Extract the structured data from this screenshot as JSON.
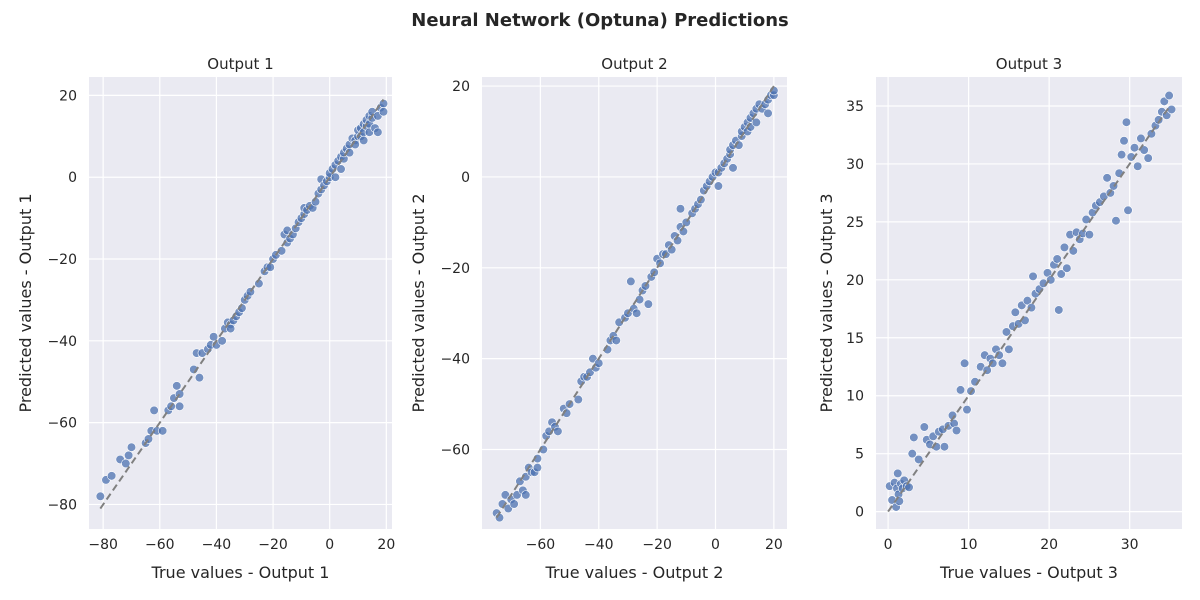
{
  "figure_title": "Neural Network (Optuna) Predictions",
  "colors": {
    "background": "#eaeaf2",
    "grid": "#ffffff",
    "point": "#4c72b0",
    "diagonal": "#808080"
  },
  "chart_data": [
    {
      "type": "scatter",
      "title": "Output 1",
      "xlabel": "True values - Output 1",
      "ylabel": "Predicted values - Output 1",
      "xlim": [
        -85,
        22
      ],
      "ylim": [
        -86,
        24.5
      ],
      "xticks": [
        -80,
        -60,
        -40,
        -20,
        0,
        20
      ],
      "yticks": [
        -80,
        -60,
        -40,
        -20,
        0,
        20
      ],
      "tick_labels_x": [
        "−80",
        "−60",
        "−40",
        "−20",
        "0",
        "20"
      ],
      "tick_labels_y": [
        "−80",
        "−60",
        "−40",
        "−20",
        "0",
        "20"
      ],
      "diagonal": [
        -81,
        19
      ],
      "grid": true,
      "points": [
        [
          -81,
          -78
        ],
        [
          -79,
          -74
        ],
        [
          -77,
          -73
        ],
        [
          -74,
          -69
        ],
        [
          -72,
          -70
        ],
        [
          -71,
          -68
        ],
        [
          -70,
          -66
        ],
        [
          -65,
          -65
        ],
        [
          -64,
          -64
        ],
        [
          -63,
          -62
        ],
        [
          -62,
          -57
        ],
        [
          -61,
          -62
        ],
        [
          -59,
          -62
        ],
        [
          -57,
          -57
        ],
        [
          -56,
          -56
        ],
        [
          -55,
          -54
        ],
        [
          -54,
          -51
        ],
        [
          -53,
          -53
        ],
        [
          -53,
          -56
        ],
        [
          -48,
          -47
        ],
        [
          -47,
          -43
        ],
        [
          -46,
          -49
        ],
        [
          -45,
          -43
        ],
        [
          -43,
          -42
        ],
        [
          -42,
          -41
        ],
        [
          -41,
          -39
        ],
        [
          -40,
          -41
        ],
        [
          -38,
          -40
        ],
        [
          -37,
          -37
        ],
        [
          -36,
          -35.5
        ],
        [
          -35,
          -36
        ],
        [
          -35,
          -37
        ],
        [
          -34,
          -35
        ],
        [
          -33,
          -34
        ],
        [
          -32,
          -33
        ],
        [
          -31,
          -32
        ],
        [
          -30,
          -30
        ],
        [
          -29,
          -29
        ],
        [
          -28,
          -28
        ],
        [
          -25,
          -26
        ],
        [
          -23,
          -23
        ],
        [
          -22,
          -22
        ],
        [
          -21,
          -22
        ],
        [
          -20,
          -20
        ],
        [
          -19,
          -19
        ],
        [
          -17,
          -18
        ],
        [
          -16,
          -14
        ],
        [
          -15,
          -13
        ],
        [
          -15,
          -16
        ],
        [
          -14,
          -15
        ],
        [
          -13,
          -14
        ],
        [
          -12,
          -12.5
        ],
        [
          -11,
          -11
        ],
        [
          -10,
          -10
        ],
        [
          -9,
          -9
        ],
        [
          -9,
          -7.5
        ],
        [
          -8,
          -8
        ],
        [
          -7,
          -7
        ],
        [
          -6,
          -7.5
        ],
        [
          -5,
          -6
        ],
        [
          -4,
          -4
        ],
        [
          -3,
          -3
        ],
        [
          -3,
          -0.5
        ],
        [
          -2,
          -2
        ],
        [
          -1,
          -1
        ],
        [
          0,
          0
        ],
        [
          0,
          1
        ],
        [
          1,
          2
        ],
        [
          2,
          3
        ],
        [
          2,
          0
        ],
        [
          3,
          4
        ],
        [
          4,
          2
        ],
        [
          4,
          5
        ],
        [
          5,
          4.5
        ],
        [
          5,
          6
        ],
        [
          6,
          7
        ],
        [
          7,
          8
        ],
        [
          7,
          6
        ],
        [
          8,
          9.5
        ],
        [
          9,
          9
        ],
        [
          9,
          8
        ],
        [
          10,
          10
        ],
        [
          10,
          11.5
        ],
        [
          11,
          10
        ],
        [
          11,
          12
        ],
        [
          12,
          11
        ],
        [
          12,
          13
        ],
        [
          12,
          9
        ],
        [
          13,
          12.5
        ],
        [
          13,
          14
        ],
        [
          14,
          13
        ],
        [
          14,
          15
        ],
        [
          14,
          11
        ],
        [
          15,
          14.5
        ],
        [
          15,
          16
        ],
        [
          16,
          12
        ],
        [
          17,
          15
        ],
        [
          17,
          11
        ],
        [
          18,
          17
        ],
        [
          19,
          18
        ],
        [
          19,
          16
        ]
      ]
    },
    {
      "type": "scatter",
      "title": "Output 2",
      "xlabel": "True values - Output 2",
      "ylabel": "Predicted values - Output 2",
      "xlim": [
        -80,
        24.5
      ],
      "ylim": [
        -77.5,
        22
      ],
      "xticks": [
        -60,
        -40,
        -20,
        0,
        20
      ],
      "yticks": [
        -60,
        -40,
        -20,
        0,
        20
      ],
      "tick_labels_x": [
        "−60",
        "−40",
        "−20",
        "0",
        "20"
      ],
      "tick_labels_y": [
        "−60",
        "−40",
        "−20",
        "0",
        "20"
      ],
      "diagonal": [
        -75,
        20
      ],
      "grid": true,
      "points": [
        [
          -75,
          -74
        ],
        [
          -74,
          -75
        ],
        [
          -73,
          -72
        ],
        [
          -72,
          -70
        ],
        [
          -71,
          -73
        ],
        [
          -70,
          -71
        ],
        [
          -69,
          -72
        ],
        [
          -68,
          -70
        ],
        [
          -67,
          -67
        ],
        [
          -66,
          -69
        ],
        [
          -65,
          -70
        ],
        [
          -65,
          -66
        ],
        [
          -64,
          -64
        ],
        [
          -63,
          -65
        ],
        [
          -62,
          -65
        ],
        [
          -61,
          -64
        ],
        [
          -61,
          -62
        ],
        [
          -59,
          -60
        ],
        [
          -58,
          -57
        ],
        [
          -57,
          -56
        ],
        [
          -56,
          -54
        ],
        [
          -55,
          -55
        ],
        [
          -54,
          -56
        ],
        [
          -52,
          -51
        ],
        [
          -51,
          -52
        ],
        [
          -50,
          -50
        ],
        [
          -47,
          -49
        ],
        [
          -46,
          -45
        ],
        [
          -45,
          -44
        ],
        [
          -44,
          -44
        ],
        [
          -43,
          -43
        ],
        [
          -42,
          -40
        ],
        [
          -41,
          -42
        ],
        [
          -40,
          -41
        ],
        [
          -37,
          -38
        ],
        [
          -36,
          -36
        ],
        [
          -35,
          -35
        ],
        [
          -34,
          -36
        ],
        [
          -33,
          -32
        ],
        [
          -31,
          -31
        ],
        [
          -30,
          -30
        ],
        [
          -29,
          -23
        ],
        [
          -28,
          -29
        ],
        [
          -27,
          -30
        ],
        [
          -26,
          -27
        ],
        [
          -25,
          -25
        ],
        [
          -24,
          -24
        ],
        [
          -23,
          -28
        ],
        [
          -22,
          -22
        ],
        [
          -21,
          -21
        ],
        [
          -20,
          -18
        ],
        [
          -19,
          -19
        ],
        [
          -18,
          -17
        ],
        [
          -17,
          -17
        ],
        [
          -16,
          -15
        ],
        [
          -15,
          -16
        ],
        [
          -14,
          -13
        ],
        [
          -13,
          -14
        ],
        [
          -12,
          -7
        ],
        [
          -12,
          -11
        ],
        [
          -11,
          -12
        ],
        [
          -10,
          -10
        ],
        [
          -8,
          -8
        ],
        [
          -7,
          -7
        ],
        [
          -6,
          -6
        ],
        [
          -5,
          -5
        ],
        [
          -4,
          -3
        ],
        [
          -3,
          -2
        ],
        [
          -2,
          -1
        ],
        [
          -1,
          0
        ],
        [
          0,
          1
        ],
        [
          1,
          -2
        ],
        [
          1,
          1
        ],
        [
          2,
          2
        ],
        [
          3,
          3
        ],
        [
          4,
          4
        ],
        [
          5,
          5
        ],
        [
          5,
          6
        ],
        [
          6,
          2
        ],
        [
          6,
          7
        ],
        [
          7,
          8
        ],
        [
          8,
          7
        ],
        [
          9,
          9
        ],
        [
          9,
          10
        ],
        [
          10,
          11
        ],
        [
          11,
          10
        ],
        [
          11,
          12
        ],
        [
          12,
          13
        ],
        [
          12,
          11
        ],
        [
          13,
          14
        ],
        [
          14,
          15
        ],
        [
          14,
          12
        ],
        [
          15,
          16
        ],
        [
          16,
          15
        ],
        [
          17,
          16
        ],
        [
          18,
          17
        ],
        [
          18,
          14
        ],
        [
          19,
          18
        ],
        [
          20,
          18
        ],
        [
          20,
          19
        ]
      ]
    },
    {
      "type": "scatter",
      "title": "Output 3",
      "xlabel": "True values - Output 3",
      "ylabel": "Predicted values - Output 3",
      "xlim": [
        -1.5,
        36.5
      ],
      "ylim": [
        -1.5,
        37.5
      ],
      "xticks": [
        0,
        10,
        20,
        30
      ],
      "yticks": [
        0,
        5,
        10,
        15,
        20,
        25,
        30,
        35
      ],
      "tick_labels_x": [
        "0",
        "10",
        "20",
        "30"
      ],
      "tick_labels_y": [
        "0",
        "5",
        "10",
        "15",
        "20",
        "25",
        "30",
        "35"
      ],
      "diagonal": [
        0,
        35
      ],
      "grid": true,
      "points": [
        [
          0.2,
          2.2
        ],
        [
          0.5,
          1
        ],
        [
          0.8,
          2.5
        ],
        [
          1,
          0.4
        ],
        [
          1.1,
          2
        ],
        [
          1.2,
          3.3
        ],
        [
          1.3,
          1.5
        ],
        [
          1.4,
          0.9
        ],
        [
          1.6,
          2.4
        ],
        [
          1.8,
          2.0
        ],
        [
          2,
          2.7
        ],
        [
          2.3,
          2.2
        ],
        [
          2.6,
          2.1
        ],
        [
          3,
          5
        ],
        [
          3.2,
          6.4
        ],
        [
          3.8,
          4.5
        ],
        [
          4.5,
          7.3
        ],
        [
          4.8,
          6.2
        ],
        [
          5.2,
          5.8
        ],
        [
          5.6,
          6.5
        ],
        [
          6,
          5.6
        ],
        [
          6.3,
          6.9
        ],
        [
          6.8,
          7.1
        ],
        [
          7,
          5.6
        ],
        [
          7.5,
          7.4
        ],
        [
          8,
          8.3
        ],
        [
          8.2,
          7.6
        ],
        [
          8.5,
          7
        ],
        [
          9,
          10.5
        ],
        [
          9.5,
          12.8
        ],
        [
          9.8,
          8.8
        ],
        [
          10.3,
          10.4
        ],
        [
          10.8,
          11.2
        ],
        [
          11.5,
          12.5
        ],
        [
          12,
          13.5
        ],
        [
          12.3,
          12.2
        ],
        [
          12.7,
          13.2
        ],
        [
          13,
          12.8
        ],
        [
          13.4,
          14
        ],
        [
          13.8,
          13.5
        ],
        [
          14.2,
          12.8
        ],
        [
          14.7,
          15.5
        ],
        [
          15,
          14
        ],
        [
          15.5,
          16
        ],
        [
          15.8,
          17.2
        ],
        [
          16.2,
          16.2
        ],
        [
          16.6,
          17.8
        ],
        [
          17,
          16.5
        ],
        [
          17.3,
          18.2
        ],
        [
          17.8,
          17.6
        ],
        [
          18,
          20.3
        ],
        [
          18.3,
          18.8
        ],
        [
          18.8,
          19.2
        ],
        [
          19.3,
          19.7
        ],
        [
          19.8,
          20.6
        ],
        [
          20.2,
          20
        ],
        [
          20.6,
          21.3
        ],
        [
          21,
          21.8
        ],
        [
          21.2,
          17.4
        ],
        [
          21.5,
          20.5
        ],
        [
          21.9,
          22.8
        ],
        [
          22.2,
          21
        ],
        [
          22.6,
          23.9
        ],
        [
          23,
          22.5
        ],
        [
          23.4,
          24.1
        ],
        [
          23.8,
          23.5
        ],
        [
          24.2,
          24
        ],
        [
          24.6,
          25.2
        ],
        [
          25,
          23.9
        ],
        [
          25.4,
          25.8
        ],
        [
          25.8,
          26.4
        ],
        [
          26.3,
          26.7
        ],
        [
          26.8,
          27.2
        ],
        [
          27.2,
          28.8
        ],
        [
          27.6,
          27.5
        ],
        [
          28,
          28.1
        ],
        [
          28.3,
          25.1
        ],
        [
          28.7,
          29.2
        ],
        [
          29,
          30.8
        ],
        [
          29.3,
          32
        ],
        [
          29.6,
          33.6
        ],
        [
          29.8,
          26
        ],
        [
          30.2,
          30.6
        ],
        [
          30.6,
          31.4
        ],
        [
          31,
          29.8
        ],
        [
          31.4,
          32.2
        ],
        [
          31.8,
          31.2
        ],
        [
          32.3,
          30.5
        ],
        [
          32.7,
          32.6
        ],
        [
          33.2,
          33.3
        ],
        [
          33.6,
          33.8
        ],
        [
          34,
          34.5
        ],
        [
          34.3,
          35.4
        ],
        [
          34.6,
          34.2
        ],
        [
          34.9,
          35.9
        ],
        [
          35.2,
          34.7
        ]
      ]
    }
  ]
}
